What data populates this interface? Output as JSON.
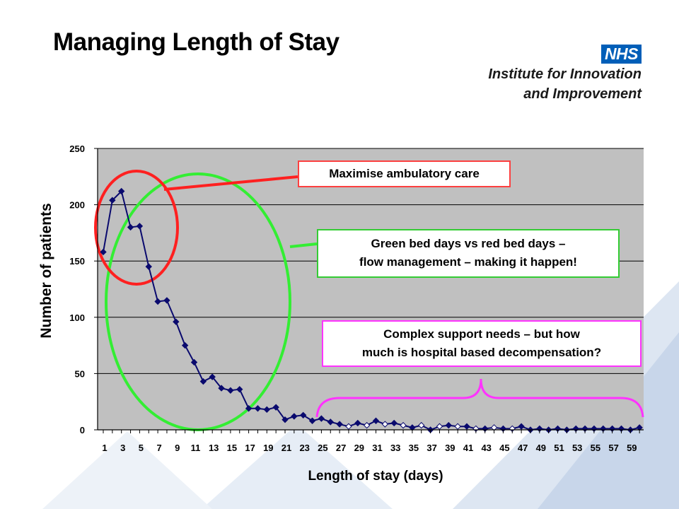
{
  "slide": {
    "title": "Managing Length of Stay",
    "brand": {
      "logo_text": "NHS",
      "org_lines": [
        "Institute for Innovation",
        "and Improvement"
      ],
      "logo_color": "#005eb8"
    }
  },
  "callouts": {
    "ambulatory": {
      "lines": [
        "Maximise ambulatory care"
      ],
      "border_color": "#ff4040"
    },
    "green_red": {
      "lines": [
        "Green bed days vs red bed days –",
        "flow management – making it happen!"
      ],
      "border_color": "#33cc33"
    },
    "complex": {
      "lines": [
        "Complex support needs – but how",
        "much is hospital based decompensation?"
      ],
      "border_color": "#ff33ff"
    }
  },
  "chart_data": {
    "type": "line",
    "xlabel": "Length of stay (days)",
    "ylabel": "Number of patients",
    "ylim": [
      0,
      250
    ],
    "y_ticks": [
      0,
      50,
      100,
      150,
      200,
      250
    ],
    "x_tick_labels": [
      "1",
      "3",
      "5",
      "7",
      "9",
      "11",
      "13",
      "15",
      "17",
      "19",
      "21",
      "23",
      "25",
      "27",
      "29",
      "31",
      "33",
      "35",
      "37",
      "39",
      "41",
      "43",
      "45",
      "47",
      "49",
      "51",
      "53",
      "55",
      "57",
      "59"
    ],
    "x": [
      1,
      2,
      3,
      4,
      5,
      6,
      7,
      8,
      9,
      10,
      11,
      12,
      13,
      14,
      15,
      16,
      17,
      18,
      19,
      20,
      21,
      22,
      23,
      24,
      25,
      26,
      27,
      28,
      29,
      30,
      31,
      32,
      33,
      34,
      35,
      36,
      37,
      38,
      39,
      40,
      41,
      42,
      43,
      44,
      45,
      46,
      47,
      48,
      49,
      50,
      51,
      52,
      53,
      54,
      55,
      56,
      57,
      58,
      59,
      60
    ],
    "values": [
      158,
      204,
      212,
      180,
      181,
      145,
      114,
      115,
      96,
      75,
      60,
      43,
      47,
      37,
      35,
      36,
      19,
      19,
      18,
      20,
      9,
      12,
      13,
      8,
      10,
      7,
      5,
      3,
      6,
      4,
      8,
      5,
      6,
      4,
      2,
      4,
      0,
      3,
      4,
      3,
      3,
      1,
      1,
      2,
      1,
      1,
      3,
      0,
      1,
      0,
      1,
      0,
      1,
      1,
      1,
      1,
      1,
      1,
      0,
      2
    ],
    "series_color": "#0a0a6e",
    "hollow_markers_from_day": 27,
    "plot_background": "#c0c0c0",
    "grid": true,
    "annotation_colors": {
      "red": "#ff2020",
      "green": "#33ee33",
      "magenta": "#ff33ff"
    }
  }
}
